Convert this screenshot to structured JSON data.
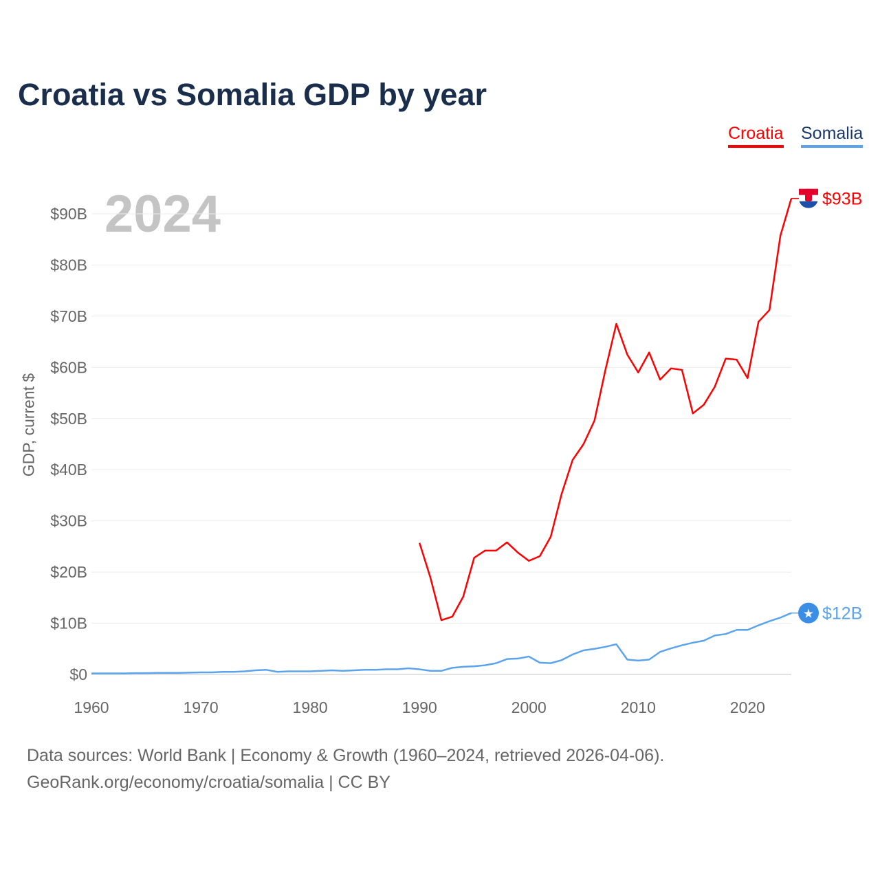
{
  "title": "Croatia vs Somalia GDP by year",
  "year_watermark": "2024",
  "footer": {
    "line1": "Data sources: World Bank | Economy & Growth (1960–2024, retrieved 2026-04-06).",
    "line2": "GeoRank.org/economy/croatia/somalia | CC BY"
  },
  "chart_data": {
    "type": "line",
    "title": "Croatia vs Somalia GDP by year",
    "xlabel": "",
    "ylabel": "GDP, current $",
    "xlim": [
      1960,
      2024
    ],
    "ylim": [
      0,
      90
    ],
    "x_ticks": [
      "1960",
      "1970",
      "1980",
      "1990",
      "2000",
      "2010",
      "2020"
    ],
    "y_ticks": [
      "$0",
      "$10B",
      "$20B",
      "$30B",
      "$40B",
      "$50B",
      "$60B",
      "$70B",
      "$80B",
      "$90B"
    ],
    "grid": true,
    "legend_position": "top-right",
    "series": [
      {
        "name": "Croatia",
        "color": "#ff0000",
        "end_label": "$93B",
        "x": [
          1990,
          1991,
          1992,
          1993,
          1994,
          1995,
          1996,
          1997,
          1998,
          1999,
          2000,
          2001,
          2002,
          2003,
          2004,
          2005,
          2006,
          2007,
          2008,
          2009,
          2010,
          2011,
          2012,
          2013,
          2014,
          2015,
          2016,
          2017,
          2018,
          2019,
          2020,
          2021,
          2022,
          2023,
          2024
        ],
        "values": [
          25.7,
          18.9,
          10.6,
          11.3,
          15.2,
          22.8,
          24.2,
          24.2,
          25.8,
          23.8,
          22.2,
          23.1,
          26.9,
          35.3,
          41.9,
          45.0,
          49.6,
          59.5,
          68.5,
          62.5,
          59.0,
          62.9,
          57.6,
          59.8,
          59.5,
          51.0,
          52.7,
          56.2,
          61.7,
          61.5,
          57.9,
          68.9,
          71.2,
          85.7,
          93.0
        ]
      },
      {
        "name": "Somalia",
        "color": "#5ba4ec",
        "end_label": "$12B",
        "x": [
          1960,
          1961,
          1962,
          1963,
          1964,
          1965,
          1966,
          1967,
          1968,
          1969,
          1970,
          1971,
          1972,
          1973,
          1974,
          1975,
          1976,
          1977,
          1978,
          1979,
          1980,
          1981,
          1982,
          1983,
          1984,
          1985,
          1986,
          1987,
          1988,
          1989,
          1990,
          1991,
          1992,
          1993,
          1994,
          1995,
          1996,
          1997,
          1998,
          1999,
          2000,
          2001,
          2002,
          2003,
          2004,
          2005,
          2006,
          2007,
          2008,
          2009,
          2010,
          2011,
          2012,
          2013,
          2014,
          2015,
          2016,
          2017,
          2018,
          2019,
          2020,
          2021,
          2022,
          2023,
          2024
        ],
        "values": [
          0.2,
          0.2,
          0.2,
          0.2,
          0.25,
          0.25,
          0.3,
          0.3,
          0.3,
          0.35,
          0.4,
          0.4,
          0.5,
          0.5,
          0.6,
          0.8,
          0.9,
          0.5,
          0.6,
          0.6,
          0.6,
          0.7,
          0.8,
          0.7,
          0.8,
          0.9,
          0.9,
          1.0,
          1.0,
          1.2,
          1.0,
          0.7,
          0.7,
          1.3,
          1.5,
          1.6,
          1.8,
          2.2,
          3.0,
          3.1,
          3.5,
          2.3,
          2.2,
          2.8,
          3.9,
          4.7,
          5.0,
          5.4,
          5.9,
          2.9,
          2.7,
          2.9,
          4.4,
          5.1,
          5.7,
          6.2,
          6.6,
          7.6,
          7.9,
          8.7,
          8.7,
          9.6,
          10.4,
          11.1,
          12.0
        ]
      }
    ]
  }
}
